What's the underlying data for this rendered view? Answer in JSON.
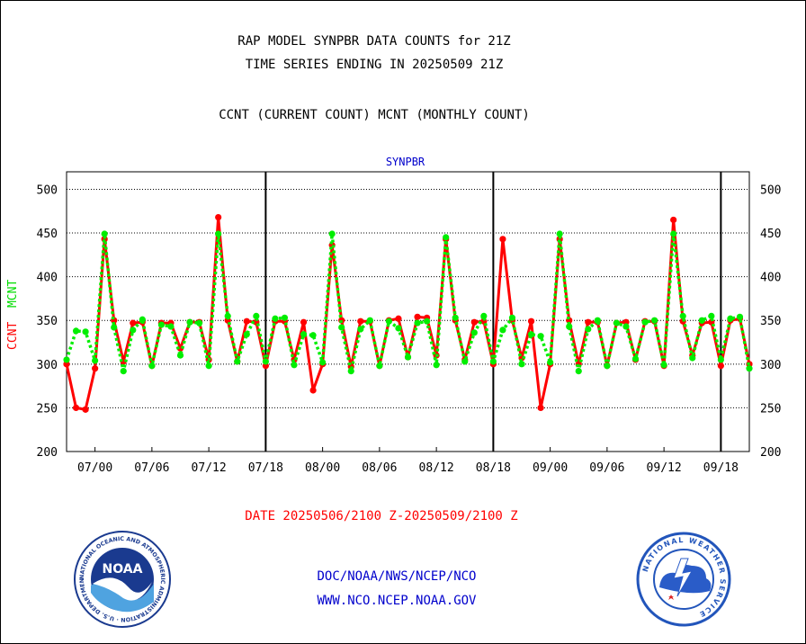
{
  "titles": {
    "line1": "RAP MODEL SYNPBR DATA COUNTS for 21Z",
    "line2": "TIME SERIES ENDING IN 20250509 21Z",
    "line3": "CCNT (CURRENT COUNT) MCNT (MONTHLY COUNT)"
  },
  "y_axis": {
    "ccnt_label": "CCNT",
    "mcnt_label": "MCNT"
  },
  "date_range": "DATE 20250506/2100 Z-20250509/2100 Z",
  "credits": {
    "line1": "DOC/NOAA/NWS/NCEP/NCO",
    "line2": "WWW.NCO.NCEP.NOAA.GOV"
  },
  "logos": {
    "noaa_text": "NOAA",
    "noaa_ring": "NATIONAL OCEANIC AND ATMOSPHERIC ADMINISTRATION · U.S. DEPARTMENT OF COMMERCE",
    "nws_ring": "NATIONAL WEATHER SERVICE"
  },
  "colors": {
    "ccnt": "#ff0000",
    "mcnt": "#00ee00",
    "panel_label": "#0000cc",
    "credits": "#0000cc"
  },
  "chart_data": {
    "type": "line",
    "panel_label": "SYNPBR",
    "ylim": [
      200,
      520
    ],
    "yticks": [
      200,
      250,
      300,
      350,
      400,
      450,
      500
    ],
    "xlim": [
      0,
      72
    ],
    "xticks": [
      3,
      9,
      15,
      21,
      27,
      33,
      39,
      45,
      51,
      57,
      63,
      69
    ],
    "xtick_labels": [
      "07/00",
      "07/06",
      "07/12",
      "07/18",
      "08/00",
      "08/06",
      "08/12",
      "08/18",
      "09/00",
      "09/06",
      "09/12",
      "09/18"
    ],
    "day_boundaries": [
      21,
      45,
      69
    ],
    "grid": true,
    "series": [
      {
        "name": "CCNT",
        "color": "#ff0000",
        "style": "solid",
        "values": [
          300,
          250,
          248,
          295,
          443,
          350,
          303,
          347,
          348,
          298,
          347,
          347,
          318,
          348,
          348,
          305,
          468,
          350,
          303,
          349,
          348,
          298,
          349,
          349,
          305,
          348,
          270,
          300,
          436,
          350,
          297,
          349,
          349,
          298,
          350,
          352,
          308,
          354,
          353,
          310,
          443,
          350,
          305,
          348,
          349,
          300,
          443,
          350,
          307,
          349,
          250,
          300,
          443,
          350,
          300,
          348,
          348,
          298,
          347,
          348,
          305,
          349,
          349,
          298,
          465,
          349,
          310,
          347,
          348,
          298,
          350,
          352,
          300
        ],
        "color_hex_note": ""
      },
      {
        "name": "MCNT",
        "color": "#00ee00",
        "style": "dotted",
        "values": [
          305,
          338,
          337,
          304,
          449,
          342,
          292,
          339,
          351,
          298,
          345,
          343,
          310,
          348,
          347,
          298,
          449,
          355,
          303,
          334,
          355,
          303,
          352,
          353,
          299,
          334,
          333,
          302,
          449,
          342,
          292,
          340,
          350,
          298,
          349,
          341,
          308,
          347,
          349,
          299,
          445,
          353,
          303,
          336,
          355,
          303,
          339,
          353,
          300,
          334,
          332,
          302,
          449,
          343,
          292,
          340,
          350,
          298,
          347,
          343,
          306,
          348,
          350,
          299,
          449,
          355,
          307,
          350,
          355,
          305,
          352,
          354,
          295
        ]
      }
    ]
  }
}
